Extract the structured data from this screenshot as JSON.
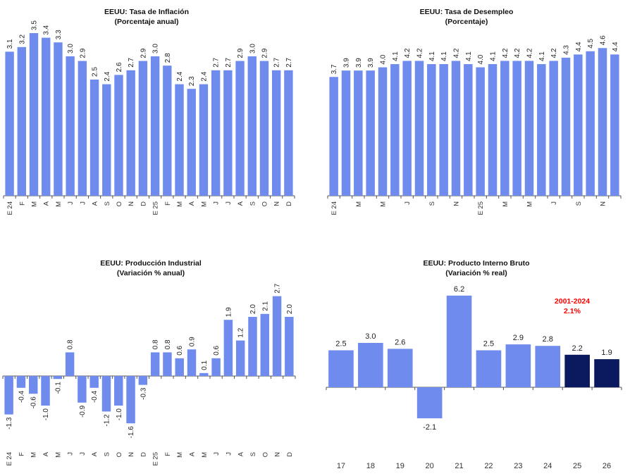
{
  "chart_data": [
    {
      "id": "inflation",
      "type": "bar",
      "title": "EEUU: Tasa de Inflación",
      "subtitle": "(Porcentaje anual)",
      "categories": [
        "E 24",
        "F",
        "M",
        "A",
        "M",
        "J",
        "J",
        "A",
        "S",
        "O",
        "N",
        "D",
        "E 25",
        "F",
        "M",
        "A",
        "M",
        "J",
        "J",
        "A",
        "S",
        "O",
        "N",
        "D"
      ],
      "values": [
        3.1,
        3.2,
        3.5,
        3.4,
        3.3,
        3.0,
        2.9,
        2.5,
        2.4,
        2.6,
        2.7,
        2.9,
        3.0,
        2.8,
        2.4,
        2.3,
        2.4,
        2.7,
        2.7,
        2.9,
        3.0,
        2.9,
        2.7,
        2.7
      ],
      "labels": [
        "3.1",
        "3.2",
        "3.5",
        "3.4",
        "3.3",
        "3.0",
        "2.9",
        "2.5",
        "2.4",
        "2.6",
        "2.7",
        "2.9",
        "3.0",
        "2.8",
        "2.4",
        "2.3",
        "2.4",
        "2.7",
        "2.7",
        "2.9",
        "3.0",
        "2.9",
        "2.7",
        "2.7"
      ],
      "ylim": [
        0,
        3.7
      ],
      "color": "#6f8bee",
      "grid": false
    },
    {
      "id": "unemployment",
      "type": "bar",
      "title": "EEUU: Tasa de Desempleo",
      "subtitle": "(Porcentaje)",
      "categories": [
        "E 24",
        "",
        "M",
        "",
        "M",
        "",
        "J",
        "",
        "S",
        "",
        "N",
        "",
        "E 25",
        "",
        "M",
        "",
        "M",
        "",
        "J",
        "",
        "S",
        "",
        "N",
        ""
      ],
      "values": [
        3.7,
        3.9,
        3.9,
        3.9,
        4.0,
        4.1,
        4.2,
        4.2,
        4.1,
        4.1,
        4.2,
        4.1,
        4.0,
        4.1,
        4.2,
        4.2,
        4.2,
        4.1,
        4.2,
        4.3,
        4.4,
        4.5,
        4.6,
        4.4
      ],
      "labels": [
        "3.7",
        "3.9",
        "3.9",
        "3.9",
        "4.0",
        "4.1",
        "4.2",
        "4.2",
        "4.1",
        "4.1",
        "4.2",
        "4.1",
        "4.0",
        "4.1",
        "4.2",
        "4.2",
        "4.2",
        "4.1",
        "4.2",
        "4.3",
        "4.4",
        "4.5",
        "4.6",
        "4.4"
      ],
      "ylim": [
        0,
        4.8
      ],
      "color": "#6f8bee",
      "grid": false
    },
    {
      "id": "industrial",
      "type": "bar",
      "title": "EEUU: Producción Industrial",
      "subtitle": "(Variación % anual)",
      "categories": [
        "E 24",
        "F",
        "M",
        "A",
        "M",
        "J",
        "J",
        "A",
        "S",
        "O",
        "N",
        "D",
        "E 25",
        "F",
        "M",
        "A",
        "M",
        "J",
        "J",
        "A",
        "S",
        "O",
        "N",
        "D"
      ],
      "values": [
        -1.3,
        -0.4,
        -0.6,
        -1.0,
        -0.1,
        0.8,
        -0.9,
        -0.4,
        -1.2,
        -1.0,
        -1.6,
        -0.3,
        0.8,
        0.8,
        0.6,
        0.9,
        0.1,
        0.6,
        1.9,
        1.2,
        2.0,
        2.1,
        2.7,
        2.0
      ],
      "labels": [
        "-1.3",
        "-0.4",
        "-0.6",
        "-1.0",
        "-0.1",
        "0.8",
        "-0.9",
        "-0.4",
        "-1.2",
        "-1.0",
        "-1.6",
        "-0.3",
        "0.8",
        "0.8",
        "0.6",
        "0.9",
        "0.1",
        "0.6",
        "1.9",
        "1.2",
        "2.0",
        "2.1",
        "2.7",
        "2.0"
      ],
      "ylim": [
        -2.6,
        3.2
      ],
      "color": "#6f8bee",
      "grid": false
    },
    {
      "id": "gdp",
      "type": "bar",
      "title": "EEUU: Producto Interno Bruto",
      "subtitle": "(Variación % real)",
      "categories": [
        "17",
        "18",
        "19",
        "20",
        "21",
        "22",
        "23",
        "24",
        "25",
        "26"
      ],
      "values": [
        2.5,
        3.0,
        2.6,
        -2.1,
        6.2,
        2.5,
        2.9,
        2.8,
        2.2,
        1.9
      ],
      "labels": [
        "2.5",
        "3.0",
        "2.6",
        "-2.1",
        "6.2",
        "2.5",
        "2.9",
        "2.8",
        "2.2",
        "1.9"
      ],
      "forecast": [
        false,
        false,
        false,
        false,
        false,
        false,
        false,
        false,
        true,
        true
      ],
      "ylim": [
        -5.0,
        6.5
      ],
      "color": "#6f8bee",
      "forecast_color": "#0b1a5e",
      "annotation": {
        "line1": "2001-2024",
        "line2": "2.1%",
        "color": "#ff0000"
      },
      "grid": false
    }
  ]
}
